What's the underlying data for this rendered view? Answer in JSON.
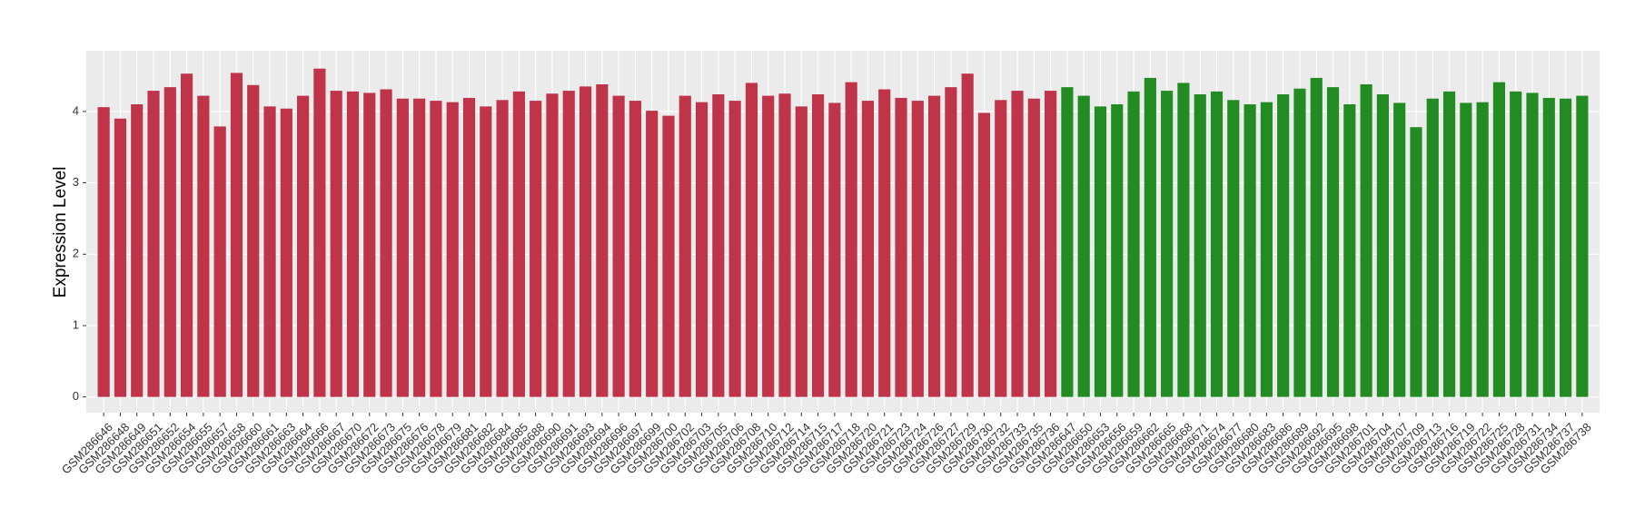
{
  "chart_data": {
    "type": "bar",
    "y_label": "Expression Level",
    "categories": [
      "GSM286646",
      "GSM286648",
      "GSM286649",
      "GSM286651",
      "GSM286652",
      "GSM286654",
      "GSM286655",
      "GSM286657",
      "GSM286658",
      "GSM286660",
      "GSM286661",
      "GSM286663",
      "GSM286664",
      "GSM286666",
      "GSM286667",
      "GSM286670",
      "GSM286672",
      "GSM286673",
      "GSM286675",
      "GSM286676",
      "GSM286678",
      "GSM286679",
      "GSM286681",
      "GSM286682",
      "GSM286684",
      "GSM286685",
      "GSM286688",
      "GSM286690",
      "GSM286691",
      "GSM286693",
      "GSM286694",
      "GSM286696",
      "GSM286697",
      "GSM286699",
      "GSM286700",
      "GSM286702",
      "GSM286703",
      "GSM286705",
      "GSM286706",
      "GSM286708",
      "GSM286710",
      "GSM286712",
      "GSM286714",
      "GSM286715",
      "GSM286717",
      "GSM286718",
      "GSM286720",
      "GSM286721",
      "GSM286723",
      "GSM286724",
      "GSM286726",
      "GSM286727",
      "GSM286729",
      "GSM286730",
      "GSM286732",
      "GSM286733",
      "GSM286735",
      "GSM286736",
      "GSM286647",
      "GSM286650",
      "GSM286653",
      "GSM286656",
      "GSM286659",
      "GSM286662",
      "GSM286665",
      "GSM286668",
      "GSM286671",
      "GSM286674",
      "GSM286677",
      "GSM286680",
      "GSM286683",
      "GSM286686",
      "GSM286689",
      "GSM286692",
      "GSM286695",
      "GSM286698",
      "GSM286701",
      "GSM286704",
      "GSM286707",
      "GSM286709",
      "GSM286713",
      "GSM286716",
      "GSM286719",
      "GSM286722",
      "GSM286725",
      "GSM286728",
      "GSM286731",
      "GSM286734",
      "GSM286737",
      "GSM286738"
    ],
    "values": [
      4.06,
      3.9,
      4.1,
      4.29,
      4.34,
      4.53,
      4.22,
      3.79,
      4.54,
      4.37,
      4.07,
      4.04,
      4.22,
      4.6,
      4.29,
      4.28,
      4.26,
      4.31,
      4.18,
      4.18,
      4.15,
      4.13,
      4.19,
      4.07,
      4.16,
      4.28,
      4.15,
      4.25,
      4.29,
      4.35,
      4.38,
      4.22,
      4.15,
      4.01,
      3.94,
      4.22,
      4.13,
      4.24,
      4.15,
      4.4,
      4.22,
      4.25,
      4.07,
      4.24,
      4.12,
      4.41,
      4.15,
      4.31,
      4.19,
      4.15,
      4.22,
      4.34,
      4.53,
      3.98,
      4.16,
      4.29,
      4.18,
      4.29,
      4.34,
      4.22,
      4.07,
      4.1,
      4.28,
      4.47,
      4.29,
      4.4,
      4.24,
      4.28,
      4.16,
      4.1,
      4.13,
      4.24,
      4.32,
      4.47,
      4.34,
      4.1,
      4.38,
      4.24,
      4.12,
      3.78,
      4.18,
      4.28,
      4.12,
      4.13,
      4.41,
      4.28,
      4.26,
      4.19,
      4.18,
      4.22
    ],
    "colors": [
      "#c0344a",
      "#c0344a",
      "#c0344a",
      "#c0344a",
      "#c0344a",
      "#c0344a",
      "#c0344a",
      "#c0344a",
      "#c0344a",
      "#c0344a",
      "#c0344a",
      "#c0344a",
      "#c0344a",
      "#c0344a",
      "#c0344a",
      "#c0344a",
      "#c0344a",
      "#c0344a",
      "#c0344a",
      "#c0344a",
      "#c0344a",
      "#c0344a",
      "#c0344a",
      "#c0344a",
      "#c0344a",
      "#c0344a",
      "#c0344a",
      "#c0344a",
      "#c0344a",
      "#c0344a",
      "#c0344a",
      "#c0344a",
      "#c0344a",
      "#c0344a",
      "#c0344a",
      "#c0344a",
      "#c0344a",
      "#c0344a",
      "#c0344a",
      "#c0344a",
      "#c0344a",
      "#c0344a",
      "#c0344a",
      "#c0344a",
      "#c0344a",
      "#c0344a",
      "#c0344a",
      "#c0344a",
      "#c0344a",
      "#c0344a",
      "#c0344a",
      "#c0344a",
      "#c0344a",
      "#c0344a",
      "#c0344a",
      "#c0344a",
      "#c0344a",
      "#c0344a",
      "#228b22",
      "#228b22",
      "#228b22",
      "#228b22",
      "#228b22",
      "#228b22",
      "#228b22",
      "#228b22",
      "#228b22",
      "#228b22",
      "#228b22",
      "#228b22",
      "#228b22",
      "#228b22",
      "#228b22",
      "#228b22",
      "#228b22",
      "#228b22",
      "#228b22",
      "#228b22",
      "#228b22",
      "#228b22",
      "#228b22",
      "#228b22",
      "#228b22",
      "#228b22",
      "#228b22",
      "#228b22",
      "#228b22",
      "#228b22",
      "#228b22",
      "#228b22"
    ],
    "ylim": [
      -0.22,
      4.85
    ],
    "yticks": [
      0,
      1,
      2,
      3,
      4
    ],
    "grid": true
  }
}
